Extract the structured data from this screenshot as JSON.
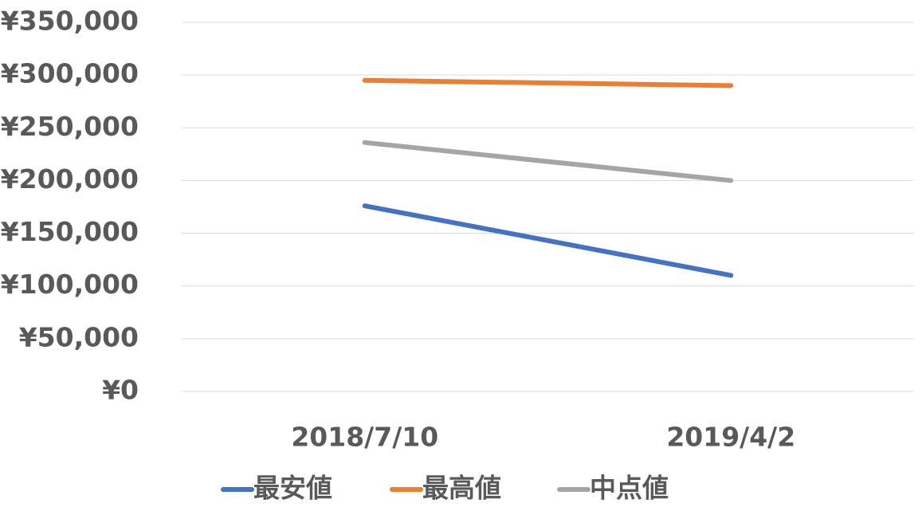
{
  "chart_data": {
    "type": "line",
    "categories": [
      "2018/7/10",
      "2019/4/2"
    ],
    "series": [
      {
        "name": "最安値",
        "color": "#4472c4",
        "values": [
          176000,
          110000
        ]
      },
      {
        "name": "最高値",
        "color": "#ed7d31",
        "values": [
          295000,
          290000
        ]
      },
      {
        "name": "中点値",
        "color": "#a5a5a5",
        "values": [
          236000,
          200000
        ]
      }
    ],
    "ylim": [
      0,
      350000
    ],
    "yticks": [
      {
        "value": 0,
        "label": "¥0"
      },
      {
        "value": 50000,
        "label": "¥50,000"
      },
      {
        "value": 100000,
        "label": "¥100,000"
      },
      {
        "value": 150000,
        "label": "¥150,000"
      },
      {
        "value": 200000,
        "label": "¥200,000"
      },
      {
        "value": 250000,
        "label": "¥250,000"
      },
      {
        "value": 300000,
        "label": "¥300,000"
      },
      {
        "value": 350000,
        "label": "¥350,000"
      }
    ],
    "grid": true,
    "legend": "bottom"
  }
}
